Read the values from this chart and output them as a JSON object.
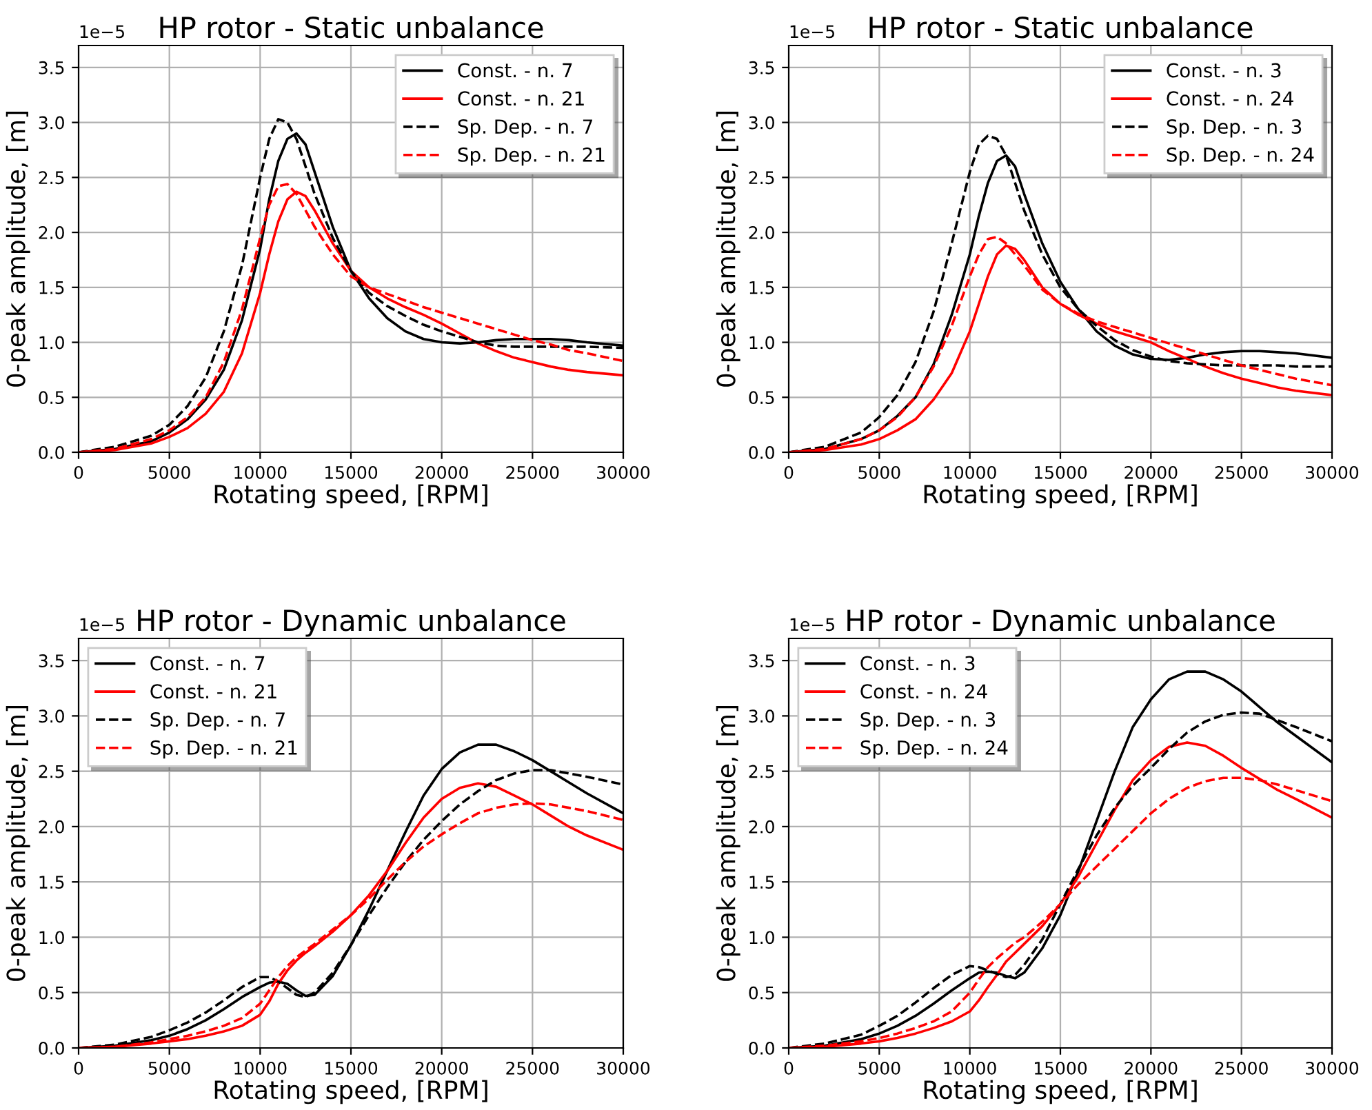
{
  "chart_data": [
    {
      "type": "line",
      "title": "HP rotor - Static unbalance",
      "xlabel": "Rotating speed, [RPM]",
      "ylabel": "0-peak amplitude, [m]",
      "annotations": [
        "1e−5"
      ],
      "x": [
        0,
        2000,
        4000,
        5000,
        6000,
        7000,
        8000,
        9000,
        10000,
        10500,
        11000,
        11500,
        12000,
        12500,
        13000,
        14000,
        15000,
        16000,
        17000,
        18000,
        19000,
        20000,
        21000,
        22000,
        23000,
        24000,
        25000,
        26000,
        27000,
        28000,
        30000
      ],
      "xlim": [
        0,
        30000
      ],
      "xticks": [
        0,
        5000,
        10000,
        15000,
        20000,
        25000,
        30000
      ],
      "ylim": [
        0,
        3.7
      ],
      "yticks": [
        {
          "value": 0,
          "label": "0.0"
        },
        {
          "value": 0.5,
          "label": "0.5"
        },
        {
          "value": 1,
          "label": "1.0"
        },
        {
          "value": 1.5,
          "label": "1.5"
        },
        {
          "value": 2,
          "label": "2.0"
        },
        {
          "value": 2.5,
          "label": "2.5"
        },
        {
          "value": 3,
          "label": "3.0"
        },
        {
          "value": 3.5,
          "label": "3.5"
        }
      ],
      "grid": true,
      "legend": "top right",
      "series": [
        {
          "name": "Const. - n. 7",
          "color": "#000000",
          "line_style": "solid",
          "values": [
            0,
            0.03,
            0.1,
            0.18,
            0.3,
            0.48,
            0.75,
            1.2,
            1.85,
            2.3,
            2.65,
            2.85,
            2.9,
            2.8,
            2.55,
            2.05,
            1.65,
            1.4,
            1.22,
            1.1,
            1.03,
            1.0,
            0.99,
            1.0,
            1.02,
            1.03,
            1.03,
            1.03,
            1.02,
            1.0,
            0.97
          ]
        },
        {
          "name": "Const. - n. 21",
          "color": "#ff0000",
          "line_style": "solid",
          "values": [
            0,
            0.02,
            0.08,
            0.14,
            0.22,
            0.35,
            0.55,
            0.9,
            1.45,
            1.8,
            2.1,
            2.3,
            2.37,
            2.33,
            2.2,
            1.9,
            1.65,
            1.5,
            1.4,
            1.32,
            1.25,
            1.17,
            1.08,
            0.99,
            0.92,
            0.86,
            0.82,
            0.78,
            0.75,
            0.73,
            0.7
          ]
        },
        {
          "name": "Sp. Dep. - n. 7",
          "color": "#000000",
          "line_style": "dashed",
          "values": [
            0,
            0.05,
            0.15,
            0.25,
            0.42,
            0.68,
            1.1,
            1.7,
            2.5,
            2.85,
            3.03,
            3.0,
            2.85,
            2.6,
            2.35,
            1.95,
            1.65,
            1.45,
            1.33,
            1.24,
            1.16,
            1.1,
            1.05,
            1.0,
            0.97,
            0.96,
            0.96,
            0.96,
            0.96,
            0.96,
            0.95
          ]
        },
        {
          "name": "Sp. Dep. - n. 21",
          "color": "#ff0000",
          "line_style": "dashed",
          "values": [
            0,
            0.03,
            0.12,
            0.2,
            0.32,
            0.5,
            0.82,
            1.3,
            1.95,
            2.25,
            2.42,
            2.44,
            2.35,
            2.2,
            2.05,
            1.8,
            1.6,
            1.5,
            1.44,
            1.38,
            1.32,
            1.27,
            1.22,
            1.17,
            1.12,
            1.07,
            1.02,
            0.98,
            0.93,
            0.9,
            0.83
          ]
        }
      ]
    },
    {
      "type": "line",
      "title": "HP rotor - Static unbalance",
      "xlabel": "Rotating speed, [RPM]",
      "ylabel": "0-peak amplitude, [m]",
      "annotations": [
        "1e−5"
      ],
      "x": [
        0,
        2000,
        4000,
        5000,
        6000,
        7000,
        8000,
        9000,
        10000,
        10500,
        11000,
        11500,
        12000,
        12500,
        13000,
        14000,
        15000,
        16000,
        17000,
        18000,
        19000,
        20000,
        21000,
        22000,
        23000,
        24000,
        25000,
        26000,
        27000,
        28000,
        30000
      ],
      "xlim": [
        0,
        30000
      ],
      "xticks": [
        0,
        5000,
        10000,
        15000,
        20000,
        25000,
        30000
      ],
      "ylim": [
        0,
        3.7
      ],
      "yticks": [
        {
          "value": 0,
          "label": "0.0"
        },
        {
          "value": 0.5,
          "label": "0.5"
        },
        {
          "value": 1,
          "label": "1.0"
        },
        {
          "value": 1.5,
          "label": "1.5"
        },
        {
          "value": 2,
          "label": "2.0"
        },
        {
          "value": 2.5,
          "label": "2.5"
        },
        {
          "value": 3,
          "label": "3.0"
        },
        {
          "value": 3.5,
          "label": "3.5"
        }
      ],
      "grid": true,
      "legend": "top right",
      "series": [
        {
          "name": "Const. - n. 3",
          "color": "#000000",
          "line_style": "solid",
          "values": [
            0,
            0.03,
            0.12,
            0.2,
            0.33,
            0.5,
            0.8,
            1.25,
            1.8,
            2.15,
            2.45,
            2.65,
            2.7,
            2.6,
            2.35,
            1.9,
            1.55,
            1.3,
            1.1,
            0.97,
            0.89,
            0.85,
            0.84,
            0.86,
            0.89,
            0.91,
            0.92,
            0.92,
            0.91,
            0.9,
            0.86
          ]
        },
        {
          "name": "Const. - n. 24",
          "color": "#ff0000",
          "line_style": "solid",
          "values": [
            0,
            0.02,
            0.07,
            0.12,
            0.2,
            0.3,
            0.48,
            0.72,
            1.1,
            1.35,
            1.6,
            1.8,
            1.88,
            1.85,
            1.75,
            1.5,
            1.35,
            1.25,
            1.17,
            1.1,
            1.05,
            1.0,
            0.92,
            0.85,
            0.78,
            0.72,
            0.67,
            0.63,
            0.59,
            0.56,
            0.52
          ]
        },
        {
          "name": "Sp. Dep. - n. 3",
          "color": "#000000",
          "line_style": "dashed",
          "values": [
            0,
            0.05,
            0.18,
            0.32,
            0.52,
            0.82,
            1.28,
            1.9,
            2.55,
            2.8,
            2.88,
            2.85,
            2.7,
            2.45,
            2.2,
            1.8,
            1.5,
            1.3,
            1.15,
            1.02,
            0.93,
            0.87,
            0.83,
            0.81,
            0.8,
            0.79,
            0.79,
            0.79,
            0.79,
            0.78,
            0.78
          ]
        },
        {
          "name": "Sp. Dep. - n. 24",
          "color": "#ff0000",
          "line_style": "dashed",
          "values": [
            0,
            0.03,
            0.12,
            0.2,
            0.32,
            0.5,
            0.78,
            1.15,
            1.6,
            1.8,
            1.94,
            1.96,
            1.9,
            1.8,
            1.7,
            1.48,
            1.35,
            1.26,
            1.19,
            1.14,
            1.09,
            1.04,
            0.99,
            0.94,
            0.89,
            0.84,
            0.79,
            0.75,
            0.71,
            0.67,
            0.61
          ]
        }
      ]
    },
    {
      "type": "line",
      "title": "HP rotor - Dynamic unbalance",
      "xlabel": "Rotating speed, [RPM]",
      "ylabel": "0-peak amplitude, [m]",
      "annotations": [
        "1e−5"
      ],
      "x": [
        0,
        2000,
        4000,
        5000,
        6000,
        7000,
        8000,
        9000,
        10000,
        10500,
        11000,
        11500,
        12000,
        12500,
        13000,
        14000,
        15000,
        16000,
        17000,
        18000,
        19000,
        20000,
        21000,
        22000,
        23000,
        24000,
        25000,
        26000,
        27000,
        28000,
        30000
      ],
      "xlim": [
        0,
        30000
      ],
      "xticks": [
        0,
        5000,
        10000,
        15000,
        20000,
        25000,
        30000
      ],
      "ylim": [
        0,
        3.7
      ],
      "yticks": [
        {
          "value": 0,
          "label": "0.0"
        },
        {
          "value": 0.5,
          "label": "0.5"
        },
        {
          "value": 1,
          "label": "1.0"
        },
        {
          "value": 1.5,
          "label": "1.5"
        },
        {
          "value": 2,
          "label": "2.0"
        },
        {
          "value": 2.5,
          "label": "2.5"
        },
        {
          "value": 3,
          "label": "3.0"
        },
        {
          "value": 3.5,
          "label": "3.5"
        }
      ],
      "grid": true,
      "legend": "top left",
      "series": [
        {
          "name": "Const. - n. 7",
          "color": "#000000",
          "line_style": "solid",
          "values": [
            0,
            0.02,
            0.07,
            0.11,
            0.17,
            0.25,
            0.35,
            0.46,
            0.55,
            0.59,
            0.6,
            0.58,
            0.52,
            0.47,
            0.48,
            0.65,
            0.93,
            1.25,
            1.6,
            1.95,
            2.28,
            2.52,
            2.67,
            2.74,
            2.74,
            2.68,
            2.6,
            2.5,
            2.4,
            2.3,
            2.12
          ]
        },
        {
          "name": "Const. - n. 21",
          "color": "#ff0000",
          "line_style": "solid",
          "values": [
            0,
            0.01,
            0.04,
            0.06,
            0.08,
            0.11,
            0.15,
            0.2,
            0.3,
            0.42,
            0.58,
            0.7,
            0.79,
            0.86,
            0.92,
            1.05,
            1.2,
            1.38,
            1.6,
            1.85,
            2.08,
            2.25,
            2.35,
            2.39,
            2.36,
            2.28,
            2.2,
            2.1,
            2.0,
            1.92,
            1.79
          ]
        },
        {
          "name": "Sp. Dep. - n. 7",
          "color": "#000000",
          "line_style": "dashed",
          "values": [
            0,
            0.03,
            0.1,
            0.16,
            0.23,
            0.32,
            0.43,
            0.55,
            0.64,
            0.64,
            0.6,
            0.54,
            0.48,
            0.46,
            0.5,
            0.68,
            0.93,
            1.2,
            1.45,
            1.68,
            1.88,
            2.05,
            2.2,
            2.32,
            2.42,
            2.48,
            2.51,
            2.51,
            2.48,
            2.45,
            2.38
          ]
        },
        {
          "name": "Sp. Dep. - n. 21",
          "color": "#ff0000",
          "line_style": "dashed",
          "values": [
            0,
            0.01,
            0.05,
            0.08,
            0.11,
            0.15,
            0.2,
            0.27,
            0.4,
            0.52,
            0.64,
            0.74,
            0.82,
            0.88,
            0.94,
            1.07,
            1.2,
            1.35,
            1.52,
            1.68,
            1.82,
            1.93,
            2.03,
            2.12,
            2.17,
            2.2,
            2.21,
            2.2,
            2.17,
            2.14,
            2.06
          ]
        }
      ]
    },
    {
      "type": "line",
      "title": "HP rotor - Dynamic unbalance",
      "xlabel": "Rotating speed, [RPM]",
      "ylabel": "0-peak amplitude, [m]",
      "annotations": [
        "1e−5"
      ],
      "x": [
        0,
        2000,
        4000,
        5000,
        6000,
        7000,
        8000,
        9000,
        10000,
        10500,
        11000,
        11500,
        12000,
        12500,
        13000,
        14000,
        15000,
        16000,
        17000,
        18000,
        19000,
        20000,
        21000,
        22000,
        23000,
        24000,
        25000,
        26000,
        27000,
        28000,
        30000
      ],
      "xlim": [
        0,
        30000
      ],
      "xticks": [
        0,
        5000,
        10000,
        15000,
        20000,
        25000,
        30000
      ],
      "ylim": [
        0,
        3.7
      ],
      "yticks": [
        {
          "value": 0,
          "label": "0.0"
        },
        {
          "value": 0.5,
          "label": "0.5"
        },
        {
          "value": 1,
          "label": "1.0"
        },
        {
          "value": 1.5,
          "label": "1.5"
        },
        {
          "value": 2,
          "label": "2.0"
        },
        {
          "value": 2.5,
          "label": "2.5"
        },
        {
          "value": 3,
          "label": "3.0"
        },
        {
          "value": 3.5,
          "label": "3.5"
        }
      ],
      "grid": true,
      "legend": "top left",
      "series": [
        {
          "name": "Const. - n. 3",
          "color": "#000000",
          "line_style": "solid",
          "values": [
            0,
            0.02,
            0.08,
            0.13,
            0.2,
            0.29,
            0.4,
            0.52,
            0.63,
            0.68,
            0.69,
            0.68,
            0.65,
            0.63,
            0.68,
            0.9,
            1.2,
            1.6,
            2.05,
            2.5,
            2.9,
            3.15,
            3.33,
            3.4,
            3.4,
            3.33,
            3.22,
            3.08,
            2.94,
            2.82,
            2.58
          ]
        },
        {
          "name": "Const. - n. 24",
          "color": "#ff0000",
          "line_style": "solid",
          "values": [
            0,
            0.01,
            0.04,
            0.06,
            0.09,
            0.13,
            0.18,
            0.24,
            0.33,
            0.43,
            0.55,
            0.66,
            0.78,
            0.86,
            0.94,
            1.1,
            1.3,
            1.55,
            1.85,
            2.15,
            2.42,
            2.6,
            2.72,
            2.76,
            2.73,
            2.64,
            2.53,
            2.43,
            2.33,
            2.25,
            2.08
          ]
        },
        {
          "name": "Sp. Dep. - n. 3",
          "color": "#000000",
          "line_style": "dashed",
          "values": [
            0,
            0.04,
            0.12,
            0.2,
            0.29,
            0.41,
            0.54,
            0.66,
            0.74,
            0.73,
            0.7,
            0.67,
            0.64,
            0.66,
            0.75,
            0.98,
            1.3,
            1.62,
            1.92,
            2.17,
            2.37,
            2.53,
            2.7,
            2.85,
            2.95,
            3.01,
            3.03,
            3.02,
            2.96,
            2.9,
            2.77
          ]
        },
        {
          "name": "Sp. Dep. - n. 24",
          "color": "#ff0000",
          "line_style": "dashed",
          "values": [
            0,
            0.02,
            0.06,
            0.09,
            0.13,
            0.18,
            0.24,
            0.33,
            0.5,
            0.62,
            0.73,
            0.81,
            0.88,
            0.95,
            1.0,
            1.14,
            1.3,
            1.48,
            1.64,
            1.8,
            1.96,
            2.12,
            2.25,
            2.35,
            2.41,
            2.44,
            2.44,
            2.42,
            2.38,
            2.33,
            2.23
          ]
        }
      ]
    }
  ]
}
